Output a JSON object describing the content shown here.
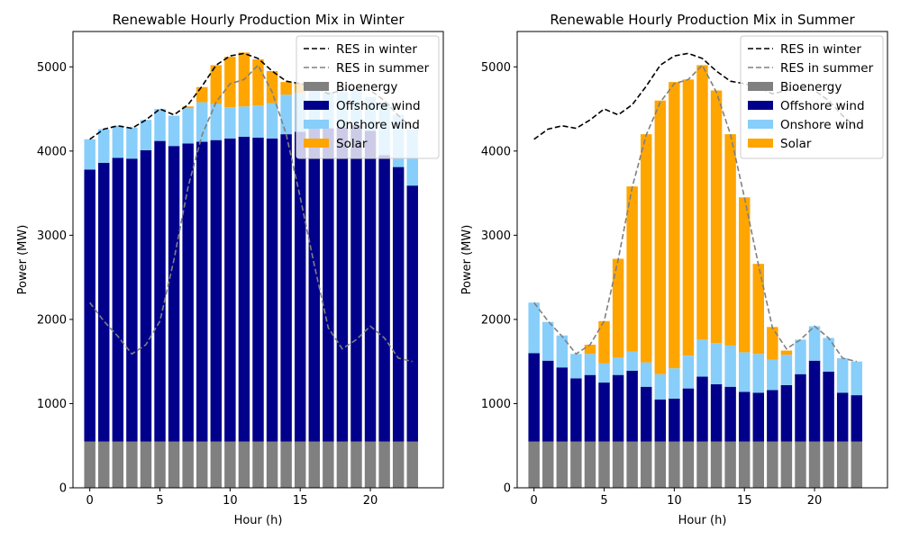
{
  "colors": {
    "bioenergy": "#808080",
    "offshore": "#00008b",
    "onshore": "#87cefa",
    "solar": "#ffa500",
    "res_winter": "#000000",
    "res_summer": "#808080"
  },
  "chart_data": [
    {
      "type": "bar",
      "stacked": true,
      "title": "Renewable Hourly Production Mix in Winter",
      "xlabel": "Hour (h)",
      "ylabel": "Power (MW)",
      "xlim": [
        -1.2,
        25.2
      ],
      "ylim": [
        0,
        5420
      ],
      "xticks": [
        0,
        5,
        10,
        15,
        20
      ],
      "yticks": [
        0,
        1000,
        2000,
        3000,
        4000,
        5000
      ],
      "grid": false,
      "legend_position": "top-right",
      "x": [
        0,
        1,
        2,
        3,
        4,
        5,
        6,
        7,
        8,
        9,
        10,
        11,
        12,
        13,
        14,
        15,
        16,
        17,
        18,
        19,
        20,
        21,
        22,
        23
      ],
      "series": [
        {
          "name": "Bioenergy",
          "color_key": "bioenergy",
          "values": [
            550,
            550,
            550,
            550,
            550,
            550,
            550,
            550,
            550,
            550,
            550,
            550,
            550,
            550,
            550,
            550,
            550,
            550,
            550,
            550,
            550,
            550,
            550,
            550
          ]
        },
        {
          "name": "Offshore wind",
          "color_key": "offshore",
          "values": [
            3230,
            3310,
            3370,
            3360,
            3460,
            3570,
            3510,
            3540,
            3560,
            3580,
            3600,
            3620,
            3610,
            3600,
            3650,
            3680,
            3740,
            3720,
            3730,
            3760,
            3690,
            3400,
            3260,
            3040
          ]
        },
        {
          "name": "Onshore wind",
          "color_key": "onshore",
          "values": [
            360,
            400,
            380,
            370,
            360,
            380,
            360,
            420,
            470,
            430,
            370,
            360,
            380,
            420,
            470,
            460,
            450,
            430,
            420,
            410,
            400,
            620,
            620,
            670
          ]
        },
        {
          "name": "Solar",
          "color_key": "solar",
          "values": [
            0,
            0,
            0,
            0,
            0,
            0,
            0,
            20,
            180,
            460,
            600,
            640,
            550,
            380,
            150,
            120,
            0,
            0,
            0,
            0,
            0,
            0,
            0,
            0
          ]
        }
      ],
      "lines": [
        {
          "name": "RES in winter",
          "color_key": "res_winter",
          "dash": "dashed",
          "x": [
            0,
            1,
            2,
            3,
            4,
            5,
            6,
            7,
            8,
            9,
            10,
            11,
            12,
            13,
            14,
            15,
            16,
            17,
            18,
            19,
            20,
            21,
            22,
            23
          ],
          "values": [
            4140,
            4260,
            4300,
            4270,
            4370,
            4500,
            4430,
            4550,
            4770,
            5020,
            5130,
            5160,
            5100,
            4950,
            4830,
            4800,
            4760,
            4680,
            4720,
            4740,
            4720,
            4600,
            4420,
            4280
          ]
        },
        {
          "name": "RES in summer",
          "color_key": "res_summer",
          "dash": "dashed",
          "x": [
            0,
            1,
            2,
            3,
            4,
            5,
            6,
            7,
            8,
            9,
            10,
            11,
            12,
            13,
            14,
            15,
            16,
            17,
            18,
            19,
            20,
            21,
            22,
            23
          ],
          "values": [
            2200,
            1980,
            1800,
            1590,
            1700,
            1980,
            2710,
            3570,
            4190,
            4580,
            4800,
            4850,
            5020,
            4700,
            4200,
            3450,
            2650,
            1900,
            1650,
            1760,
            1920,
            1780,
            1540,
            1500
          ]
        }
      ]
    },
    {
      "type": "bar",
      "stacked": true,
      "title": "Renewable Hourly Production Mix in Summer",
      "xlabel": "Hour (h)",
      "ylabel": "Power (MW)",
      "xlim": [
        -1.2,
        25.2
      ],
      "ylim": [
        0,
        5420
      ],
      "xticks": [
        0,
        5,
        10,
        15,
        20
      ],
      "yticks": [
        0,
        1000,
        2000,
        3000,
        4000,
        5000
      ],
      "grid": false,
      "legend_position": "top-right",
      "x": [
        0,
        1,
        2,
        3,
        4,
        5,
        6,
        7,
        8,
        9,
        10,
        11,
        12,
        13,
        14,
        15,
        16,
        17,
        18,
        19,
        20,
        21,
        22,
        23
      ],
      "series": [
        {
          "name": "Bioenergy",
          "color_key": "bioenergy",
          "values": [
            550,
            550,
            550,
            550,
            550,
            550,
            550,
            550,
            550,
            550,
            550,
            550,
            550,
            550,
            550,
            550,
            550,
            550,
            550,
            550,
            550,
            550,
            550,
            550
          ]
        },
        {
          "name": "Offshore wind",
          "color_key": "offshore",
          "values": [
            1050,
            960,
            880,
            750,
            790,
            700,
            790,
            840,
            650,
            500,
            510,
            630,
            770,
            680,
            650,
            590,
            580,
            610,
            670,
            800,
            960,
            830,
            580,
            550
          ]
        },
        {
          "name": "Onshore wind",
          "color_key": "onshore",
          "values": [
            600,
            460,
            380,
            290,
            250,
            230,
            210,
            230,
            290,
            300,
            360,
            390,
            440,
            490,
            490,
            470,
            460,
            360,
            360,
            410,
            410,
            400,
            410,
            400
          ]
        },
        {
          "name": "Solar",
          "color_key": "solar",
          "values": [
            0,
            0,
            0,
            0,
            110,
            500,
            1170,
            1960,
            2710,
            3250,
            3400,
            3280,
            3260,
            3000,
            2510,
            1840,
            1070,
            390,
            50,
            0,
            0,
            0,
            0,
            0
          ]
        }
      ],
      "lines": [
        {
          "name": "RES in winter",
          "color_key": "res_winter",
          "dash": "dashed",
          "x": [
            0,
            1,
            2,
            3,
            4,
            5,
            6,
            7,
            8,
            9,
            10,
            11,
            12,
            13,
            14,
            15,
            16,
            17,
            18,
            19,
            20,
            21,
            22,
            23
          ],
          "values": [
            4140,
            4260,
            4300,
            4270,
            4370,
            4500,
            4430,
            4550,
            4770,
            5020,
            5130,
            5160,
            5100,
            4950,
            4830,
            4800,
            4760,
            4680,
            4720,
            4740,
            4720,
            4600,
            4420,
            4280
          ]
        },
        {
          "name": "RES in summer",
          "color_key": "res_summer",
          "dash": "dashed",
          "x": [
            0,
            1,
            2,
            3,
            4,
            5,
            6,
            7,
            8,
            9,
            10,
            11,
            12,
            13,
            14,
            15,
            16,
            17,
            18,
            19,
            20,
            21,
            22,
            23
          ],
          "values": [
            2200,
            1980,
            1800,
            1590,
            1700,
            1980,
            2710,
            3570,
            4190,
            4580,
            4800,
            4850,
            5020,
            4700,
            4200,
            3450,
            2650,
            1900,
            1650,
            1760,
            1920,
            1780,
            1540,
            1500
          ]
        }
      ]
    }
  ]
}
